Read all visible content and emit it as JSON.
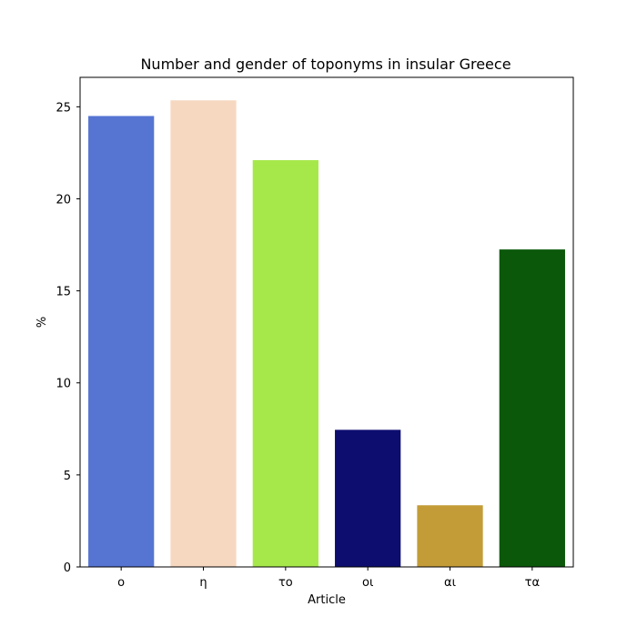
{
  "chart_data": {
    "type": "bar",
    "title": "Number and gender of toponyms in insular Greece",
    "xlabel": "Article",
    "ylabel": "%",
    "categories": [
      "ο",
      "η",
      "το",
      "οι",
      "αι",
      "τα"
    ],
    "values": [
      24.5,
      25.35,
      22.1,
      7.45,
      3.35,
      17.25
    ],
    "colors": [
      "#5675d3",
      "#f6d8c0",
      "#a6e84a",
      "#0d0d70",
      "#c39c37",
      "#0b580b"
    ],
    "ylim": [
      0,
      26.6
    ],
    "yticks": [
      0,
      5,
      10,
      15,
      20,
      25
    ],
    "grid": false,
    "legend": "none"
  }
}
